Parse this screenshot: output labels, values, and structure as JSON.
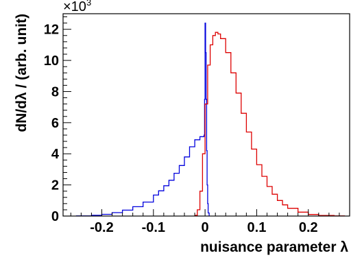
{
  "chart_data": {
    "type": "line",
    "xlabel": "nuisance parameter  λ",
    "ylabel": "dN/dλ / (arb. unit)",
    "y_multiplier_base": "×10",
    "y_multiplier_exp": "3",
    "xlim": [
      -0.275,
      0.28
    ],
    "ylim": [
      0,
      13
    ],
    "x_ticks": [
      -0.2,
      -0.1,
      0,
      0.1,
      0.2
    ],
    "x_tick_labels": [
      "-0.2",
      "-0.1",
      "0",
      "0.1",
      "0.2"
    ],
    "y_ticks": [
      0,
      2,
      4,
      6,
      8,
      10,
      12
    ],
    "y_tick_labels": [
      "0",
      "2",
      "4",
      "6",
      "8",
      "10",
      "12"
    ],
    "grid": false,
    "series": [
      {
        "color": "#0000dd",
        "x": [
          -0.25,
          -0.22,
          -0.2,
          -0.18,
          -0.16,
          -0.14,
          -0.12,
          -0.1,
          -0.09,
          -0.08,
          -0.07,
          -0.06,
          -0.05,
          -0.04,
          -0.03,
          -0.02,
          -0.01,
          -0.005,
          -0.002,
          -0.001,
          0.0,
          0.001,
          0.002,
          0.003,
          0.004,
          0.005,
          0.006,
          0.008
        ],
        "y": [
          0.01,
          0.05,
          0.11,
          0.22,
          0.38,
          0.6,
          0.9,
          1.35,
          1.62,
          1.95,
          2.3,
          2.75,
          3.25,
          3.8,
          4.45,
          4.9,
          5.1,
          5.1,
          5.2,
          7.5,
          12.4,
          10.5,
          7.5,
          4.2,
          2.0,
          0.8,
          0.2,
          0.0
        ]
      },
      {
        "color": "#dd0000",
        "x": [
          -0.02,
          -0.015,
          -0.01,
          -0.005,
          0.0,
          0.005,
          0.01,
          0.015,
          0.02,
          0.025,
          0.03,
          0.04,
          0.05,
          0.06,
          0.07,
          0.08,
          0.09,
          0.1,
          0.11,
          0.12,
          0.13,
          0.14,
          0.15,
          0.16,
          0.18,
          0.2,
          0.22,
          0.25,
          0.27
        ],
        "y": [
          0.05,
          0.4,
          1.6,
          4.0,
          7.2,
          9.7,
          11.0,
          11.6,
          11.8,
          11.7,
          11.4,
          10.5,
          9.2,
          7.9,
          6.6,
          5.4,
          4.3,
          3.3,
          2.55,
          1.9,
          1.4,
          1.0,
          0.72,
          0.5,
          0.25,
          0.1,
          0.04,
          0.01,
          0.0
        ]
      }
    ]
  }
}
